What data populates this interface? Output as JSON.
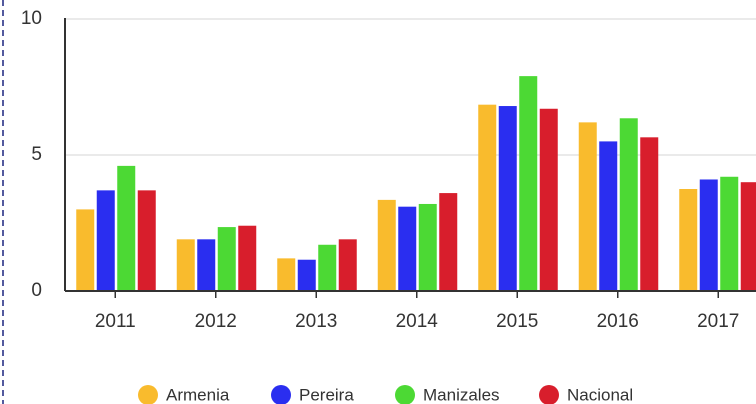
{
  "chart_data": {
    "type": "bar",
    "categories": [
      "2011",
      "2012",
      "2013",
      "2014",
      "2015",
      "2016",
      "2017"
    ],
    "series": [
      {
        "name": "Armenia",
        "color": "#f9bb2d",
        "values": [
          3.0,
          1.9,
          1.2,
          3.35,
          6.85,
          6.2,
          3.75
        ]
      },
      {
        "name": "Pereira",
        "color": "#2a2ef0",
        "values": [
          3.7,
          1.9,
          1.15,
          3.1,
          6.8,
          5.5,
          4.1
        ]
      },
      {
        "name": "Manizales",
        "color": "#4cd934",
        "values": [
          4.6,
          2.35,
          1.7,
          3.2,
          7.9,
          6.35,
          4.2
        ]
      },
      {
        "name": "Nacional",
        "color": "#d81e2c",
        "values": [
          3.7,
          2.4,
          1.9,
          3.6,
          6.7,
          5.65,
          4.0
        ]
      }
    ],
    "ylim": [
      0,
      10
    ],
    "yticks": [
      0,
      5,
      10
    ],
    "grid": true,
    "legend": "bottom"
  }
}
